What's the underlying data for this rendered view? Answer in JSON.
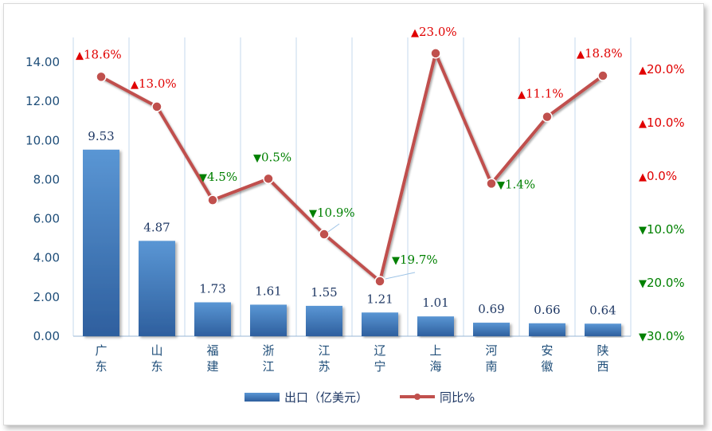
{
  "chart_data": {
    "type": "bar",
    "categories": [
      "广东",
      "山东",
      "福建",
      "浙江",
      "江苏",
      "辽宁",
      "上海",
      "河南",
      "安徽",
      "陕西"
    ],
    "series": [
      {
        "name": "出口（亿美元）",
        "type": "bar",
        "axis": "left",
        "values": [
          9.53,
          4.87,
          1.73,
          1.61,
          1.55,
          1.21,
          1.01,
          0.69,
          0.66,
          0.64
        ],
        "labels": [
          "9.53",
          "4.87",
          "1.73",
          "1.61",
          "1.55",
          "1.21",
          "1.01",
          "0.69",
          "0.66",
          "0.64"
        ]
      },
      {
        "name": "同比%",
        "type": "line",
        "axis": "right",
        "values": [
          18.6,
          13.0,
          -4.5,
          -0.5,
          -10.9,
          -19.7,
          23.0,
          -1.4,
          11.1,
          18.8
        ],
        "labels": [
          "18.6%",
          "13.0%",
          "4.5%",
          "0.5%",
          "10.9%",
          "19.7%",
          "23.0%",
          "1.4%",
          "11.1%",
          "18.8%"
        ]
      }
    ],
    "y_left": {
      "range": [
        0,
        14
      ],
      "ticks": [
        "0.00",
        "2.00",
        "4.00",
        "6.00",
        "8.00",
        "10.00",
        "12.00",
        "14.00"
      ]
    },
    "y_right": {
      "range": [
        -30,
        30
      ],
      "tick_values": [
        20,
        10,
        0,
        -10,
        -20,
        -30
      ],
      "tick_labels": [
        "20.0%",
        "10.0%",
        "0.0%",
        "10.0%",
        "20.0%",
        "30.0%"
      ]
    },
    "grid": "vertical category separators",
    "legend": "bottom",
    "colors": {
      "bar_top": "#5a96d4",
      "bar_bottom": "#2e5f9e",
      "line": "#c0504d",
      "up": "#e00000",
      "down": "#008000",
      "axis_text": "#1f4e79",
      "grid": "#c6d9ec"
    },
    "markers": {
      "up": "▲",
      "down": "▼"
    }
  }
}
